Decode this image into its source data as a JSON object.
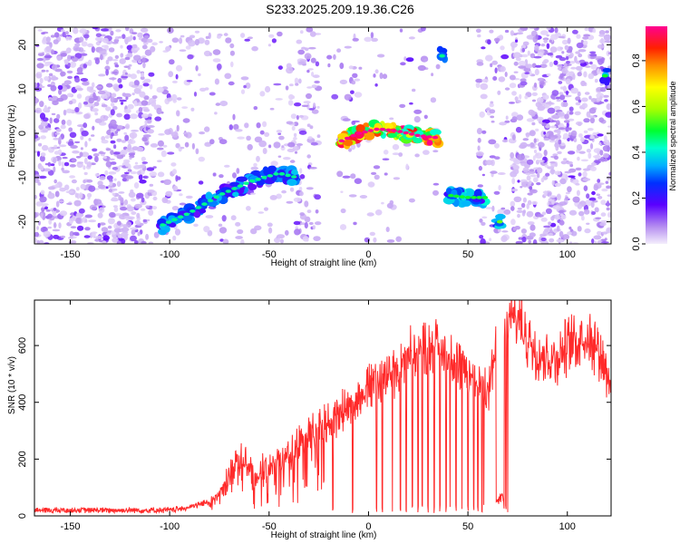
{
  "title": "S233.2025.209.19.36.C26",
  "chart_data": [
    {
      "type": "heatmap",
      "xlabel": "Height of straight line (km)",
      "ylabel": "Frequency (Hz)",
      "xlim": [
        -168,
        122
      ],
      "ylim": [
        -25,
        24
      ],
      "xticks": [
        -150,
        -100,
        -50,
        0,
        50,
        100
      ],
      "yticks": [
        -20,
        -10,
        0,
        10,
        20
      ],
      "colorbar": {
        "label": "Normalized spectral amplitude",
        "ticks": [
          0.0,
          0.2,
          0.4,
          0.6,
          0.8
        ],
        "range": [
          0,
          0.95
        ]
      },
      "grid": false,
      "features": [
        {
          "x": [
            -105,
            -90,
            -75,
            -60,
            -45,
            -36
          ],
          "y": [
            -21,
            -18,
            -14,
            -11,
            -9,
            -10
          ],
          "amp": 0.35
        },
        {
          "x": [
            -15,
            -5,
            5,
            15,
            25,
            35
          ],
          "y": [
            -2,
            0,
            1,
            0.5,
            -0.5,
            -1
          ],
          "amp": 0.9
        },
        {
          "x": [
            40,
            50,
            60
          ],
          "y": [
            -14,
            -14.5,
            -14.5
          ],
          "amp": 0.4
        },
        {
          "x": [
            37
          ],
          "y": [
            17.5
          ],
          "amp": 0.35
        },
        {
          "x": [
            66
          ],
          "y": [
            -20
          ],
          "amp": 0.45
        },
        {
          "x": [
            119
          ],
          "y": [
            13
          ],
          "amp": 0.4
        }
      ]
    },
    {
      "type": "line",
      "xlabel": "Height of straight line (km)",
      "ylabel": "SNR (10 * v/v)",
      "xlim": [
        -168,
        122
      ],
      "ylim": [
        0,
        760
      ],
      "xticks": [
        -150,
        -100,
        -50,
        0,
        50,
        100
      ],
      "yticks": [
        0,
        200,
        400,
        600
      ],
      "line_color": "#ff2a2a",
      "grid": false,
      "envelope": {
        "x": [
          -168,
          -100,
          -90,
          -80,
          -75,
          -70,
          -65,
          -60,
          -55,
          -50,
          -45,
          -40,
          -35,
          -30,
          -25,
          -20,
          -15,
          -10,
          -5,
          0,
          5,
          10,
          15,
          20,
          25,
          30,
          35,
          40,
          45,
          50,
          55,
          60,
          65,
          70,
          75,
          80,
          85,
          90,
          95,
          100,
          105,
          110,
          115,
          122
        ],
        "y": [
          20,
          20,
          30,
          50,
          80,
          160,
          200,
          180,
          150,
          170,
          190,
          220,
          260,
          290,
          320,
          330,
          360,
          380,
          420,
          460,
          470,
          500,
          520,
          560,
          590,
          600,
          600,
          560,
          520,
          500,
          470,
          460,
          600,
          680,
          700,
          620,
          580,
          560,
          550,
          600,
          620,
          640,
          600,
          480
        ]
      },
      "dropouts_x": [
        -18,
        -8,
        4,
        7,
        12,
        16,
        19,
        22,
        25,
        27,
        30,
        33,
        36,
        39,
        41,
        44,
        47,
        50,
        53,
        55,
        57,
        58,
        65,
        66,
        67,
        68,
        69,
        70
      ]
    }
  ]
}
